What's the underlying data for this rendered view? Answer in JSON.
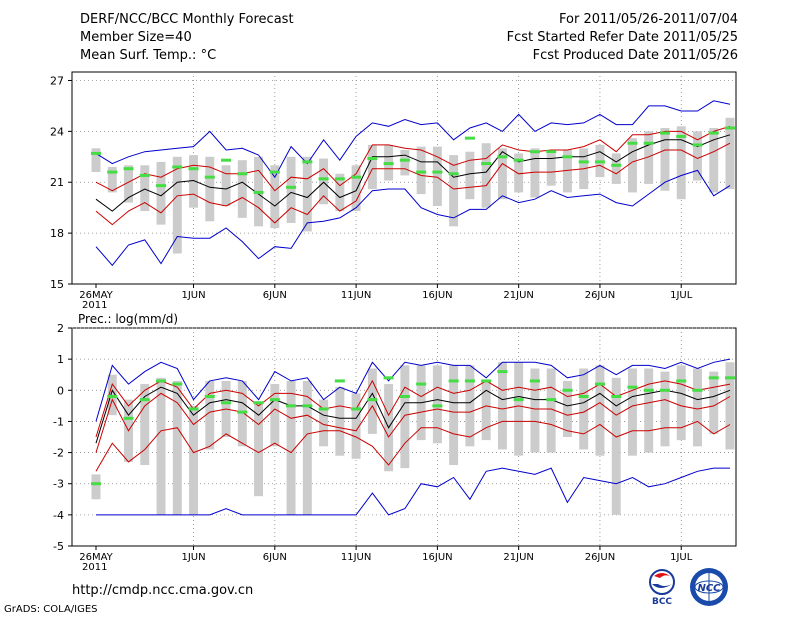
{
  "header": {
    "left": [
      "DERF/NCC/BCC Monthly Forecast",
      "Member Size=40",
      "Mean Surf. Temp.: °C"
    ],
    "right": [
      "For 2011/05/26-2011/07/04",
      "Fcst Started Refer Date 2011/05/25",
      "Fcst Produced Date 2011/05/26"
    ]
  },
  "footer": {
    "url": "http://cmdp.ncc.cma.gov.cn",
    "credit": "GrADS: COLA/IGES"
  },
  "logos": {
    "left_text": "BCC",
    "right_text": "NCC"
  },
  "colors": {
    "envelope": "#0000cc",
    "spread": "#cc0000",
    "mean": "#000000",
    "obs": "#44dd44",
    "box": "#cccccc"
  },
  "chart_data": [
    {
      "type": "line",
      "title": "Mean Surf. Temp.: °C",
      "ylim": [
        15,
        27.5
      ],
      "yticks": [
        15,
        18,
        21,
        24,
        27
      ],
      "x_days": 40,
      "xtick_labels": [
        "26MAY",
        "1JUN",
        "6JUN",
        "11JUN",
        "16JUN",
        "21JUN",
        "26JUN",
        "1JUL"
      ],
      "xtick_days": [
        0,
        6,
        11,
        16,
        21,
        26,
        31,
        36
      ],
      "year_label": "2011",
      "series": [
        {
          "name": "max",
          "values": [
            22.7,
            22.1,
            22.5,
            22.8,
            22.9,
            23.0,
            23.1,
            24.0,
            22.9,
            23.0,
            22.6,
            21.3,
            23.1,
            22.1,
            23.5,
            22.3,
            23.7,
            24.5,
            24.3,
            24.7,
            24.4,
            24.5,
            23.5,
            24.2,
            24.5,
            24.0,
            25.0,
            24.0,
            24.5,
            24.4,
            24.5,
            25.0,
            24.4,
            24.4,
            25.5,
            25.5,
            25.2,
            25.2,
            25.8,
            25.6
          ]
        },
        {
          "name": "upper",
          "values": [
            21.0,
            20.5,
            21.0,
            21.5,
            21.3,
            21.8,
            22.0,
            21.9,
            21.5,
            21.5,
            21.7,
            20.5,
            21.3,
            21.2,
            21.8,
            20.8,
            21.5,
            23.2,
            23.2,
            23.0,
            22.9,
            22.5,
            22.0,
            22.3,
            22.4,
            23.2,
            22.9,
            22.8,
            22.9,
            22.9,
            23.1,
            23.5,
            22.8,
            23.8,
            23.8,
            24.0,
            24.0,
            23.5,
            24.0,
            24.3
          ]
        },
        {
          "name": "mean",
          "values": [
            20.0,
            19.3,
            20.1,
            20.6,
            20.2,
            21.0,
            21.1,
            20.7,
            20.6,
            21.0,
            20.3,
            19.6,
            20.4,
            20.1,
            21.0,
            20.1,
            20.5,
            22.5,
            22.5,
            22.6,
            22.2,
            22.2,
            21.3,
            21.5,
            21.6,
            22.8,
            22.2,
            22.4,
            22.4,
            22.5,
            22.5,
            22.8,
            22.2,
            22.8,
            23.2,
            23.5,
            23.5,
            23.1,
            23.5,
            23.8
          ]
        },
        {
          "name": "lower",
          "values": [
            19.3,
            18.5,
            19.3,
            19.8,
            19.2,
            20.2,
            20.3,
            19.8,
            19.6,
            20.1,
            19.5,
            18.6,
            19.5,
            19.1,
            20.2,
            19.3,
            19.9,
            21.8,
            21.8,
            21.8,
            21.4,
            21.3,
            20.6,
            20.7,
            20.8,
            22.1,
            21.5,
            21.6,
            21.6,
            21.7,
            21.8,
            22.0,
            21.5,
            22.2,
            22.5,
            22.9,
            22.9,
            22.4,
            22.8,
            23.3
          ]
        },
        {
          "name": "min",
          "values": [
            17.2,
            16.1,
            17.3,
            17.6,
            16.2,
            17.8,
            17.7,
            17.7,
            18.3,
            17.5,
            16.5,
            17.2,
            17.1,
            18.6,
            18.7,
            18.9,
            19.5,
            20.5,
            20.6,
            20.6,
            19.5,
            19.1,
            18.9,
            19.4,
            19.4,
            20.2,
            19.8,
            20.0,
            20.5,
            20.1,
            20.2,
            20.3,
            19.8,
            19.6,
            20.3,
            21.0,
            21.4,
            21.7,
            20.2,
            20.8
          ]
        },
        {
          "name": "bar_top",
          "values": [
            23.0,
            21.9,
            22.0,
            22.0,
            22.2,
            22.5,
            22.6,
            22.5,
            22.0,
            22.3,
            22.5,
            22.0,
            22.5,
            22.5,
            22.4,
            21.5,
            22.0,
            23.2,
            23.2,
            22.9,
            23.1,
            23.1,
            22.6,
            22.8,
            23.3,
            23.0,
            22.7,
            23.0,
            22.7,
            22.9,
            23.0,
            23.2,
            22.7,
            23.6,
            24.0,
            24.2,
            24.3,
            24.0,
            24.2,
            24.8
          ]
        },
        {
          "name": "bar_bottom",
          "values": [
            21.6,
            20.4,
            19.8,
            19.3,
            18.5,
            16.8,
            19.5,
            18.7,
            19.6,
            18.9,
            18.4,
            18.3,
            18.6,
            18.1,
            19.7,
            19.3,
            19.3,
            20.6,
            21.1,
            21.4,
            20.3,
            19.6,
            18.4,
            20.0,
            19.5,
            20.0,
            20.4,
            20.1,
            20.8,
            20.4,
            20.6,
            21.3,
            20.9,
            20.4,
            20.9,
            20.5,
            20.0,
            21.1,
            20.4,
            20.6
          ]
        },
        {
          "name": "observed",
          "values": [
            22.7,
            21.6,
            21.8,
            21.4,
            20.8,
            21.9,
            21.8,
            21.3,
            22.3,
            21.5,
            20.4,
            21.6,
            20.7,
            22.2,
            21.2,
            21.2,
            21.3,
            22.4,
            22.1,
            22.3,
            21.6,
            21.6,
            21.5,
            23.6,
            22.1,
            22.5,
            22.3,
            22.8,
            22.8,
            22.5,
            22.2,
            22.2,
            22.0,
            23.3,
            23.3,
            23.9,
            23.7,
            23.2,
            23.9,
            24.2
          ]
        }
      ]
    },
    {
      "type": "line",
      "title": "Prec.: log(mm/d)",
      "ylim": [
        -5,
        2
      ],
      "yticks": [
        -5,
        -4,
        -3,
        -2,
        -1,
        0,
        1,
        2
      ],
      "x_days": 40,
      "xtick_labels": [
        "26MAY",
        "1JUN",
        "6JUN",
        "11JUN",
        "16JUN",
        "21JUN",
        "26JUN",
        "1JUL"
      ],
      "xtick_days": [
        0,
        6,
        11,
        16,
        21,
        26,
        31,
        36
      ],
      "year_label": "2011",
      "series": [
        {
          "name": "max",
          "values": [
            -1.0,
            0.8,
            0.2,
            0.6,
            0.9,
            0.7,
            -0.3,
            0.3,
            0.4,
            0.3,
            -0.3,
            0.6,
            0.3,
            0.4,
            -0.3,
            0.1,
            -0.1,
            0.9,
            0.3,
            0.9,
            0.8,
            0.9,
            0.8,
            0.8,
            0.4,
            0.9,
            0.9,
            0.9,
            0.8,
            0.4,
            0.5,
            0.8,
            0.5,
            0.8,
            0.8,
            0.7,
            0.9,
            0.7,
            0.9,
            1.0
          ]
        },
        {
          "name": "upper",
          "values": [
            -1.5,
            0.2,
            -0.5,
            0.0,
            0.3,
            0.1,
            -0.6,
            -0.1,
            0.0,
            -0.1,
            -0.5,
            -0.1,
            -0.1,
            -0.2,
            -0.6,
            -0.5,
            -0.6,
            0.3,
            -0.8,
            0.1,
            -0.2,
            0.1,
            -0.1,
            0.0,
            0.3,
            0.0,
            0.1,
            0.0,
            0.1,
            -0.2,
            -0.1,
            0.2,
            -0.2,
            0.0,
            0.2,
            0.3,
            0.2,
            0.0,
            0.1,
            0.2
          ]
        },
        {
          "name": "mean",
          "values": [
            -1.7,
            0.0,
            -0.8,
            -0.2,
            0.1,
            -0.1,
            -0.8,
            -0.4,
            -0.3,
            -0.4,
            -0.8,
            -0.3,
            -0.5,
            -0.5,
            -0.8,
            -0.9,
            -0.9,
            -0.1,
            -1.2,
            -0.4,
            -0.4,
            -0.3,
            -0.4,
            -0.4,
            0.0,
            -0.3,
            -0.2,
            -0.3,
            -0.3,
            -0.5,
            -0.4,
            -0.1,
            -0.5,
            -0.2,
            -0.1,
            0.0,
            -0.1,
            -0.3,
            -0.2,
            0.0
          ]
        },
        {
          "name": "lower",
          "values": [
            -2.0,
            -0.3,
            -1.3,
            -0.5,
            -0.1,
            -0.4,
            -1.1,
            -0.7,
            -0.6,
            -0.7,
            -1.1,
            -0.6,
            -0.9,
            -0.8,
            -1.1,
            -1.2,
            -1.3,
            -0.5,
            -1.5,
            -0.8,
            -0.7,
            -0.6,
            -0.7,
            -0.7,
            -0.5,
            -0.6,
            -0.5,
            -0.6,
            -0.6,
            -0.8,
            -0.7,
            -0.4,
            -0.8,
            -0.5,
            -0.4,
            -0.3,
            -0.5,
            -0.6,
            -0.5,
            -0.2
          ]
        },
        {
          "name": "lower2",
          "values": [
            -2.6,
            -1.7,
            -2.3,
            -1.9,
            -1.3,
            -1.2,
            -2.0,
            -1.8,
            -1.4,
            -1.7,
            -2.0,
            -1.7,
            -2.0,
            -1.4,
            -1.3,
            -1.3,
            -1.5,
            -1.8,
            -2.4,
            -1.7,
            -1.2,
            -1.2,
            -1.4,
            -1.5,
            -1.2,
            -1.0,
            -1.0,
            -1.0,
            -1.1,
            -1.3,
            -1.4,
            -1.1,
            -1.5,
            -1.3,
            -1.3,
            -1.2,
            -1.2,
            -1.0,
            -1.4,
            -1.1
          ]
        },
        {
          "name": "min",
          "values": [
            -4.0,
            -4.0,
            -4.0,
            -4.0,
            -4.0,
            -4.0,
            -4.0,
            -4.0,
            -3.8,
            -4.0,
            -4.0,
            -4.0,
            -4.0,
            -4.0,
            -4.0,
            -4.0,
            -4.0,
            -3.3,
            -4.0,
            -3.8,
            -3.0,
            -3.1,
            -2.8,
            -3.5,
            -2.6,
            -2.5,
            -2.6,
            -2.7,
            -2.5,
            -3.6,
            -2.8,
            -2.9,
            -3.0,
            -2.8,
            -3.1,
            -3.0,
            -2.8,
            -2.6,
            -2.5,
            -2.5
          ]
        },
        {
          "name": "bar_top",
          "values": [
            -2.7,
            0.5,
            -0.3,
            0.2,
            0.4,
            0.3,
            -0.5,
            0.3,
            0.3,
            0.3,
            -0.4,
            0.2,
            0.3,
            0.3,
            -0.3,
            0.1,
            -0.1,
            0.7,
            0.2,
            0.8,
            0.8,
            0.8,
            0.8,
            0.8,
            0.3,
            0.9,
            0.9,
            0.7,
            0.7,
            0.3,
            0.7,
            0.8,
            0.4,
            0.7,
            0.7,
            0.6,
            0.8,
            0.7,
            0.6,
            0.9
          ]
        },
        {
          "name": "bar_bottom",
          "values": [
            -3.5,
            -0.8,
            -2.3,
            -2.4,
            -4.0,
            -4.0,
            -4.0,
            -1.9,
            -1.5,
            -1.8,
            -3.4,
            -1.8,
            -4.0,
            -4.0,
            -1.8,
            -2.1,
            -2.2,
            -1.4,
            -2.6,
            -2.5,
            -1.6,
            -1.7,
            -2.4,
            -1.8,
            -1.6,
            -1.9,
            -2.1,
            -2.0,
            -2.0,
            -1.5,
            -1.9,
            -2.1,
            -4.0,
            -2.1,
            -2.0,
            -1.8,
            -1.6,
            -1.8,
            -1.4,
            -1.9
          ]
        },
        {
          "name": "observed",
          "values": [
            -3.0,
            -0.2,
            -0.9,
            -0.3,
            0.3,
            0.2,
            -0.6,
            -0.2,
            -0.4,
            -0.7,
            -0.4,
            -0.3,
            -0.5,
            -0.5,
            -0.6,
            0.3,
            -0.6,
            -0.3,
            0.4,
            -0.2,
            0.2,
            -0.5,
            0.3,
            0.3,
            0.3,
            0.6,
            -0.3,
            0.3,
            -0.3,
            0.0,
            -0.2,
            0.2,
            -0.2,
            0.1,
            0.0,
            0.0,
            0.3,
            0.0,
            0.4,
            0.4
          ]
        }
      ]
    }
  ]
}
